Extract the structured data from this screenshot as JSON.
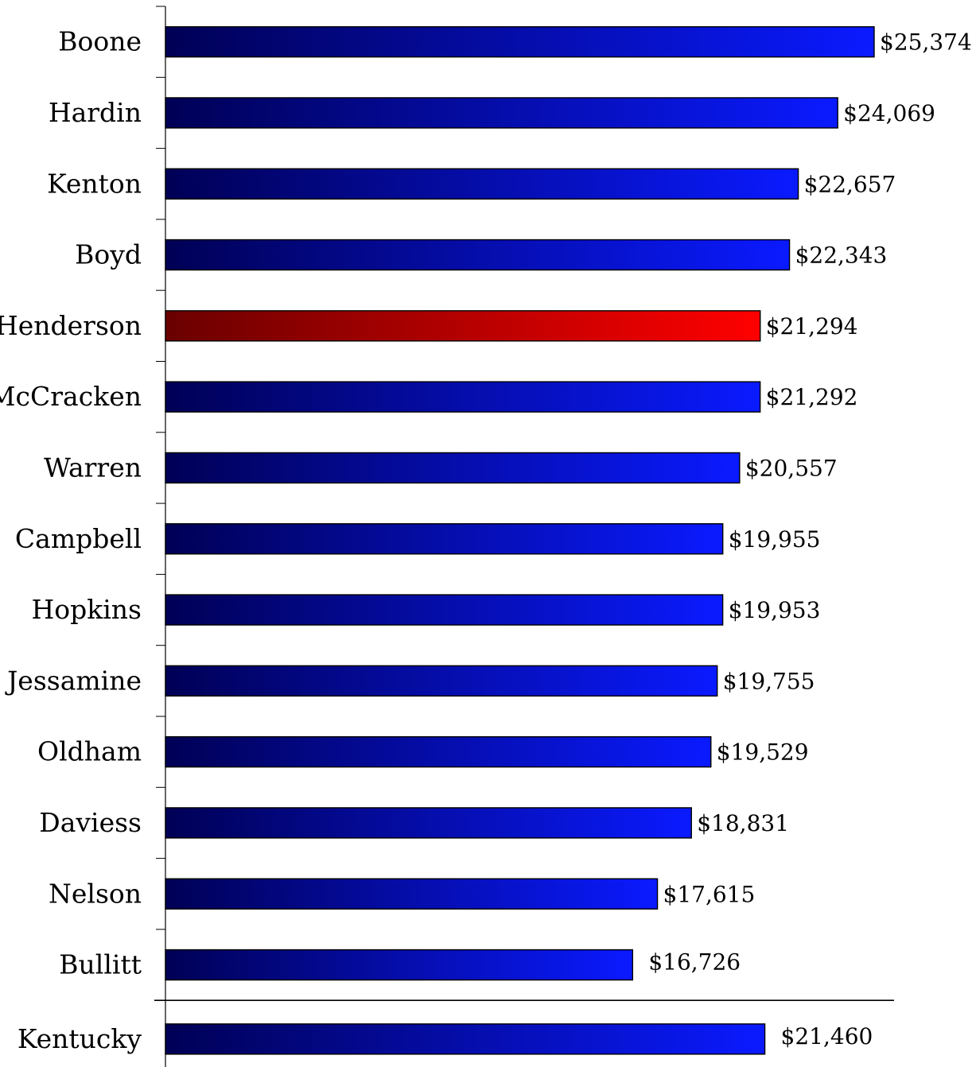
{
  "chart_data": {
    "type": "bar",
    "orientation": "horizontal",
    "categories": [
      "Boone",
      "Hardin",
      "Kenton",
      "Boyd",
      "Henderson",
      "McCracken",
      "Warren",
      "Campbell",
      "Hopkins",
      "Jessamine",
      "Oldham",
      "Daviess",
      "Nelson",
      "Bullitt",
      "Kentucky"
    ],
    "values": [
      25374,
      24069,
      22657,
      22343,
      21294,
      21292,
      20557,
      19955,
      19953,
      19755,
      19529,
      18831,
      17615,
      16726,
      21460
    ],
    "value_labels": [
      "$25,374",
      "$24,069",
      "$22,657",
      "$22,343",
      "$21,294",
      "$21,292",
      "$20,557",
      "$19,955",
      "$19,953",
      "$19,755",
      "$19,529",
      "$18,831",
      "$17,615",
      "$16,726",
      "$21,460"
    ],
    "highlight_category": "Henderson",
    "summary_category": "Kentucky",
    "xlim": [
      0,
      25374
    ],
    "title": "",
    "xlabel": "",
    "ylabel": "",
    "grid": false,
    "legend": "none",
    "colors": {
      "bar_dark": "#000055",
      "bar_light": "#0a1aff",
      "highlight_dark": "#6a0000",
      "highlight_light": "#ff0000",
      "outline": "#000000"
    }
  }
}
